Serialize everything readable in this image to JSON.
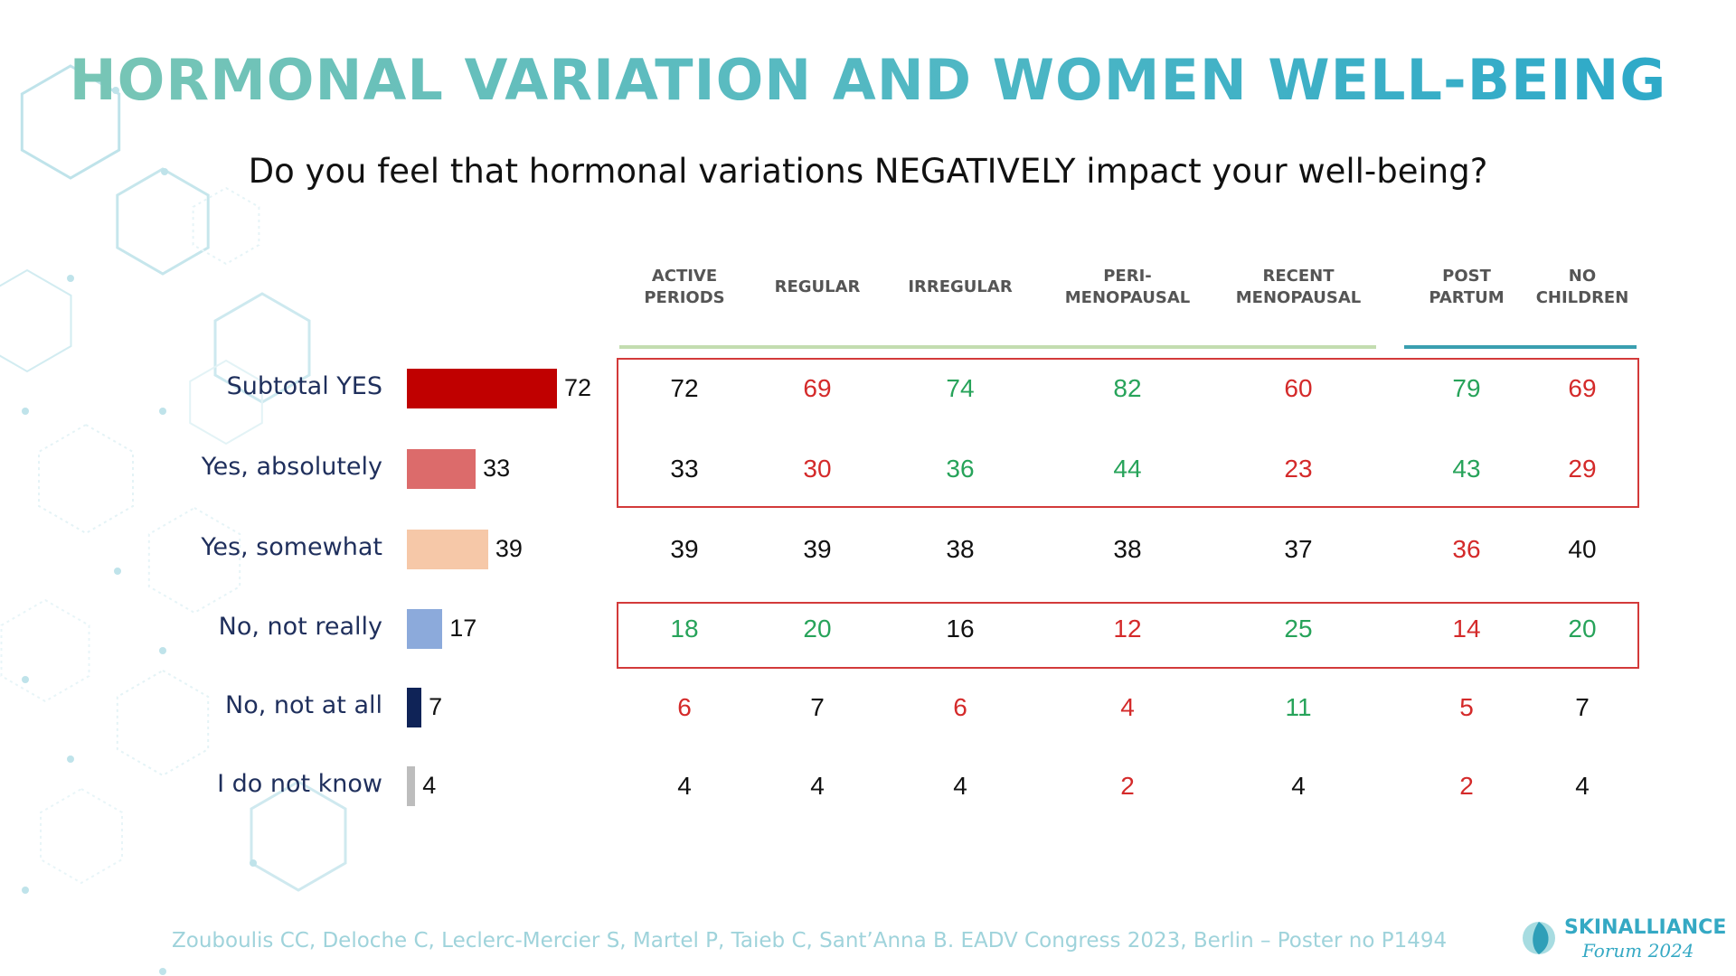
{
  "title": "HORMONAL VARIATION AND WOMEN WELL-BEING",
  "question": "Do you feel that hormonal variations NEGATIVELY impact your well-being?",
  "colors": {
    "higher": "#27a35a",
    "lower": "#d42a2a",
    "neutral": "#111111",
    "box": "#d33a3a",
    "line_green": "#c3ddb0",
    "line_teal": "#3a9fb0"
  },
  "chart_data": {
    "type": "table",
    "columns": [
      "ACTIVE\nPERIODS",
      "REGULAR",
      "IRREGULAR",
      "PERI-\nMENOPAUSAL",
      "RECENT\nMENOPAUSAL",
      "POST\nPARTUM",
      "NO\nCHILDREN"
    ],
    "rows": [
      {
        "label": "Subtotal YES",
        "total": 72,
        "bar_color": "#c00000",
        "values": [
          72,
          69,
          74,
          82,
          60,
          79,
          69
        ],
        "trend": [
          "neutral",
          "lower",
          "higher",
          "higher",
          "lower",
          "higher",
          "lower"
        ]
      },
      {
        "label": "Yes, absolutely",
        "total": 33,
        "bar_color": "#dc6b6b",
        "values": [
          33,
          30,
          36,
          44,
          23,
          43,
          29
        ],
        "trend": [
          "neutral",
          "lower",
          "higher",
          "higher",
          "lower",
          "higher",
          "lower"
        ]
      },
      {
        "label": "Yes, somewhat",
        "total": 39,
        "bar_color": "#f6c8a8",
        "values": [
          39,
          39,
          38,
          38,
          37,
          36,
          40
        ],
        "trend": [
          "neutral",
          "neutral",
          "neutral",
          "neutral",
          "neutral",
          "lower",
          "neutral"
        ]
      },
      {
        "label": "No, not really",
        "total": 17,
        "bar_color": "#8caadb",
        "values": [
          18,
          20,
          16,
          12,
          25,
          14,
          20
        ],
        "trend": [
          "higher",
          "higher",
          "neutral",
          "lower",
          "higher",
          "lower",
          "higher"
        ]
      },
      {
        "label": "No, not at all",
        "total": 7,
        "bar_color": "#0f2357",
        "values": [
          6,
          7,
          6,
          4,
          11,
          5,
          7
        ],
        "trend": [
          "lower",
          "neutral",
          "lower",
          "lower",
          "higher",
          "lower",
          "neutral"
        ]
      },
      {
        "label": "I do not know",
        "total": 4,
        "bar_color": "#bdbdbd",
        "values": [
          4,
          4,
          4,
          2,
          4,
          2,
          4
        ],
        "trend": [
          "neutral",
          "neutral",
          "neutral",
          "lower",
          "neutral",
          "lower",
          "neutral"
        ]
      }
    ],
    "bar_scale_max": 72
  },
  "footer": "Zouboulis CC, Deloche C, Leclerc-Mercier S, Martel P, Taieb C, Sant’Anna B. EADV Congress 2023, Berlin – Poster no P1494",
  "logo": {
    "line1": "SKINALLIANCE",
    "line2": "Forum 2024"
  }
}
